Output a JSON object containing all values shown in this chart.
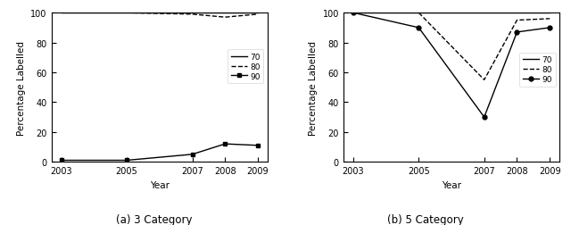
{
  "years": [
    2003,
    2005,
    2007,
    2008,
    2009
  ],
  "left": {
    "title": "(a) 3 Category",
    "ylabel": "Percentage Labelled",
    "xlabel": "Year",
    "line70": [
      100,
      100,
      100,
      100,
      100
    ],
    "line80": [
      100,
      100,
      99,
      97,
      99
    ],
    "line90": [
      1,
      1,
      5,
      12,
      11
    ]
  },
  "right": {
    "title": "(b) 5 Category",
    "ylabel": "Percentage Labelled",
    "xlabel": "Year",
    "line70": [
      100,
      100,
      100,
      100,
      100
    ],
    "line80": [
      100,
      100,
      55,
      95,
      96
    ],
    "line90": [
      100,
      90,
      30,
      87,
      90
    ]
  },
  "legend_labels": [
    "70",
    "80",
    "90"
  ],
  "ylim": [
    0,
    100
  ],
  "yticks": [
    0,
    20,
    40,
    60,
    80,
    100
  ],
  "color": "black",
  "bg_color": "white"
}
